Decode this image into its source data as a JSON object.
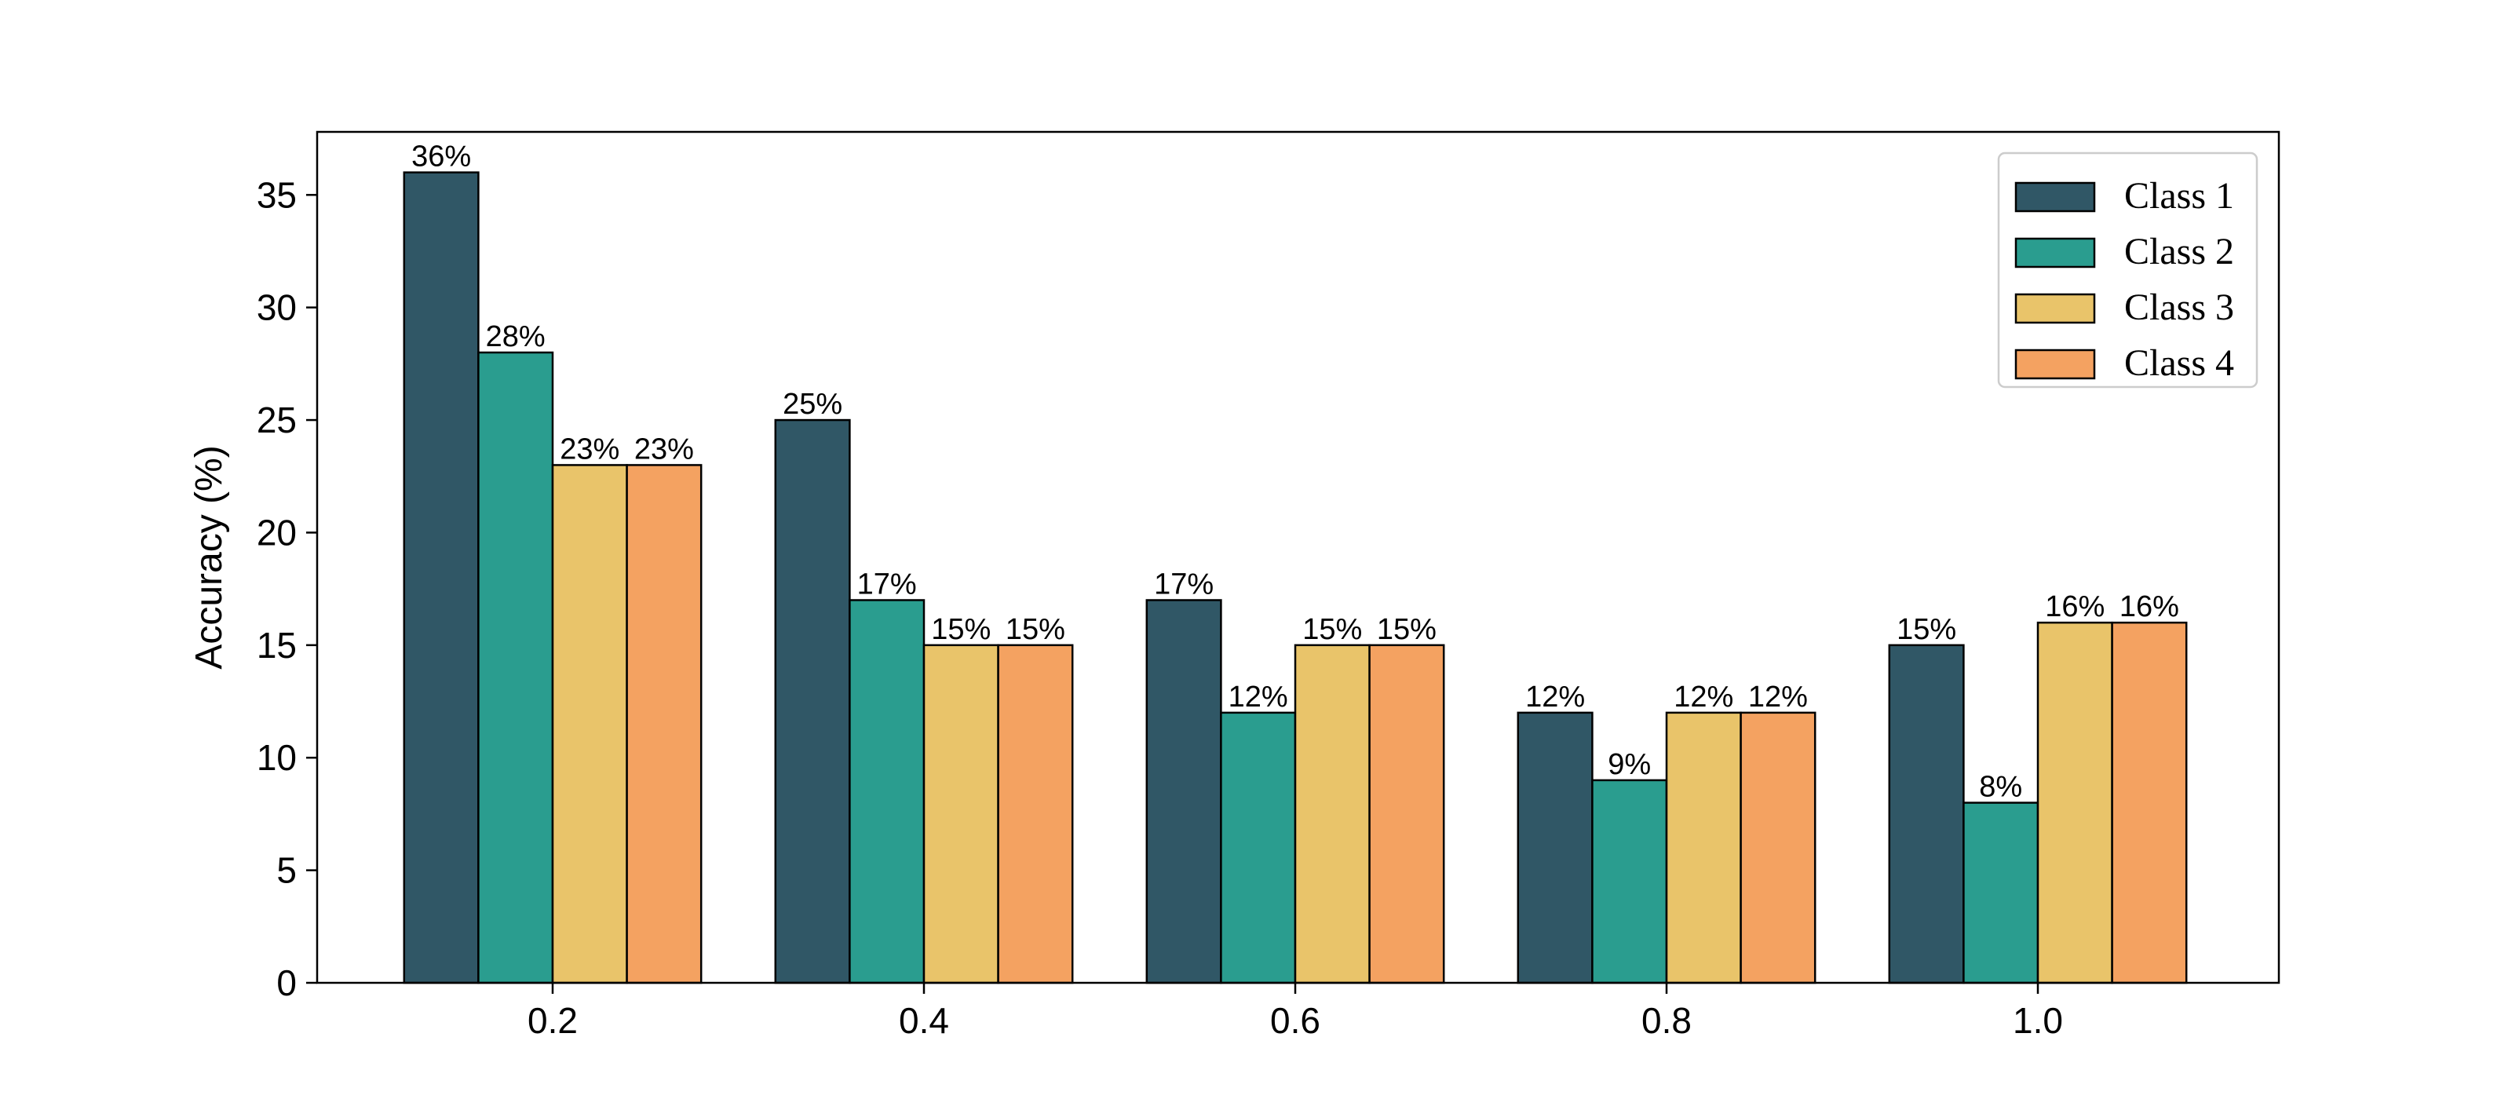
{
  "chart_data": {
    "type": "bar",
    "title": "",
    "xlabel": "",
    "ylabel": "Accuracy (%)",
    "categories": [
      "0.2",
      "0.4",
      "0.6",
      "0.8",
      "1.0"
    ],
    "ylim": [
      0,
      37.8
    ],
    "yticks": [
      "0",
      "5",
      "10",
      "15",
      "20",
      "25",
      "30",
      "35"
    ],
    "grid": false,
    "legend_position": "top-right",
    "series": [
      {
        "name": "Class 1",
        "color": "#305766",
        "values": [
          36,
          25,
          17,
          12,
          15
        ],
        "labels": [
          "36%",
          "25%",
          "17%",
          "12%",
          "15%"
        ]
      },
      {
        "name": "Class 2",
        "color": "#2a9d8f",
        "values": [
          28,
          17,
          12,
          9,
          8
        ],
        "labels": [
          "28%",
          "17%",
          "12%",
          "9%",
          "8%"
        ]
      },
      {
        "name": "Class 3",
        "color": "#e9c46a",
        "values": [
          23,
          15,
          15,
          12,
          16
        ],
        "labels": [
          "23%",
          "15%",
          "15%",
          "12%",
          "16%"
        ]
      },
      {
        "name": "Class 4",
        "color": "#f4a261",
        "values": [
          23,
          15,
          15,
          12,
          16
        ],
        "labels": [
          "23%",
          "15%",
          "15%",
          "12%",
          "16%"
        ]
      }
    ]
  }
}
